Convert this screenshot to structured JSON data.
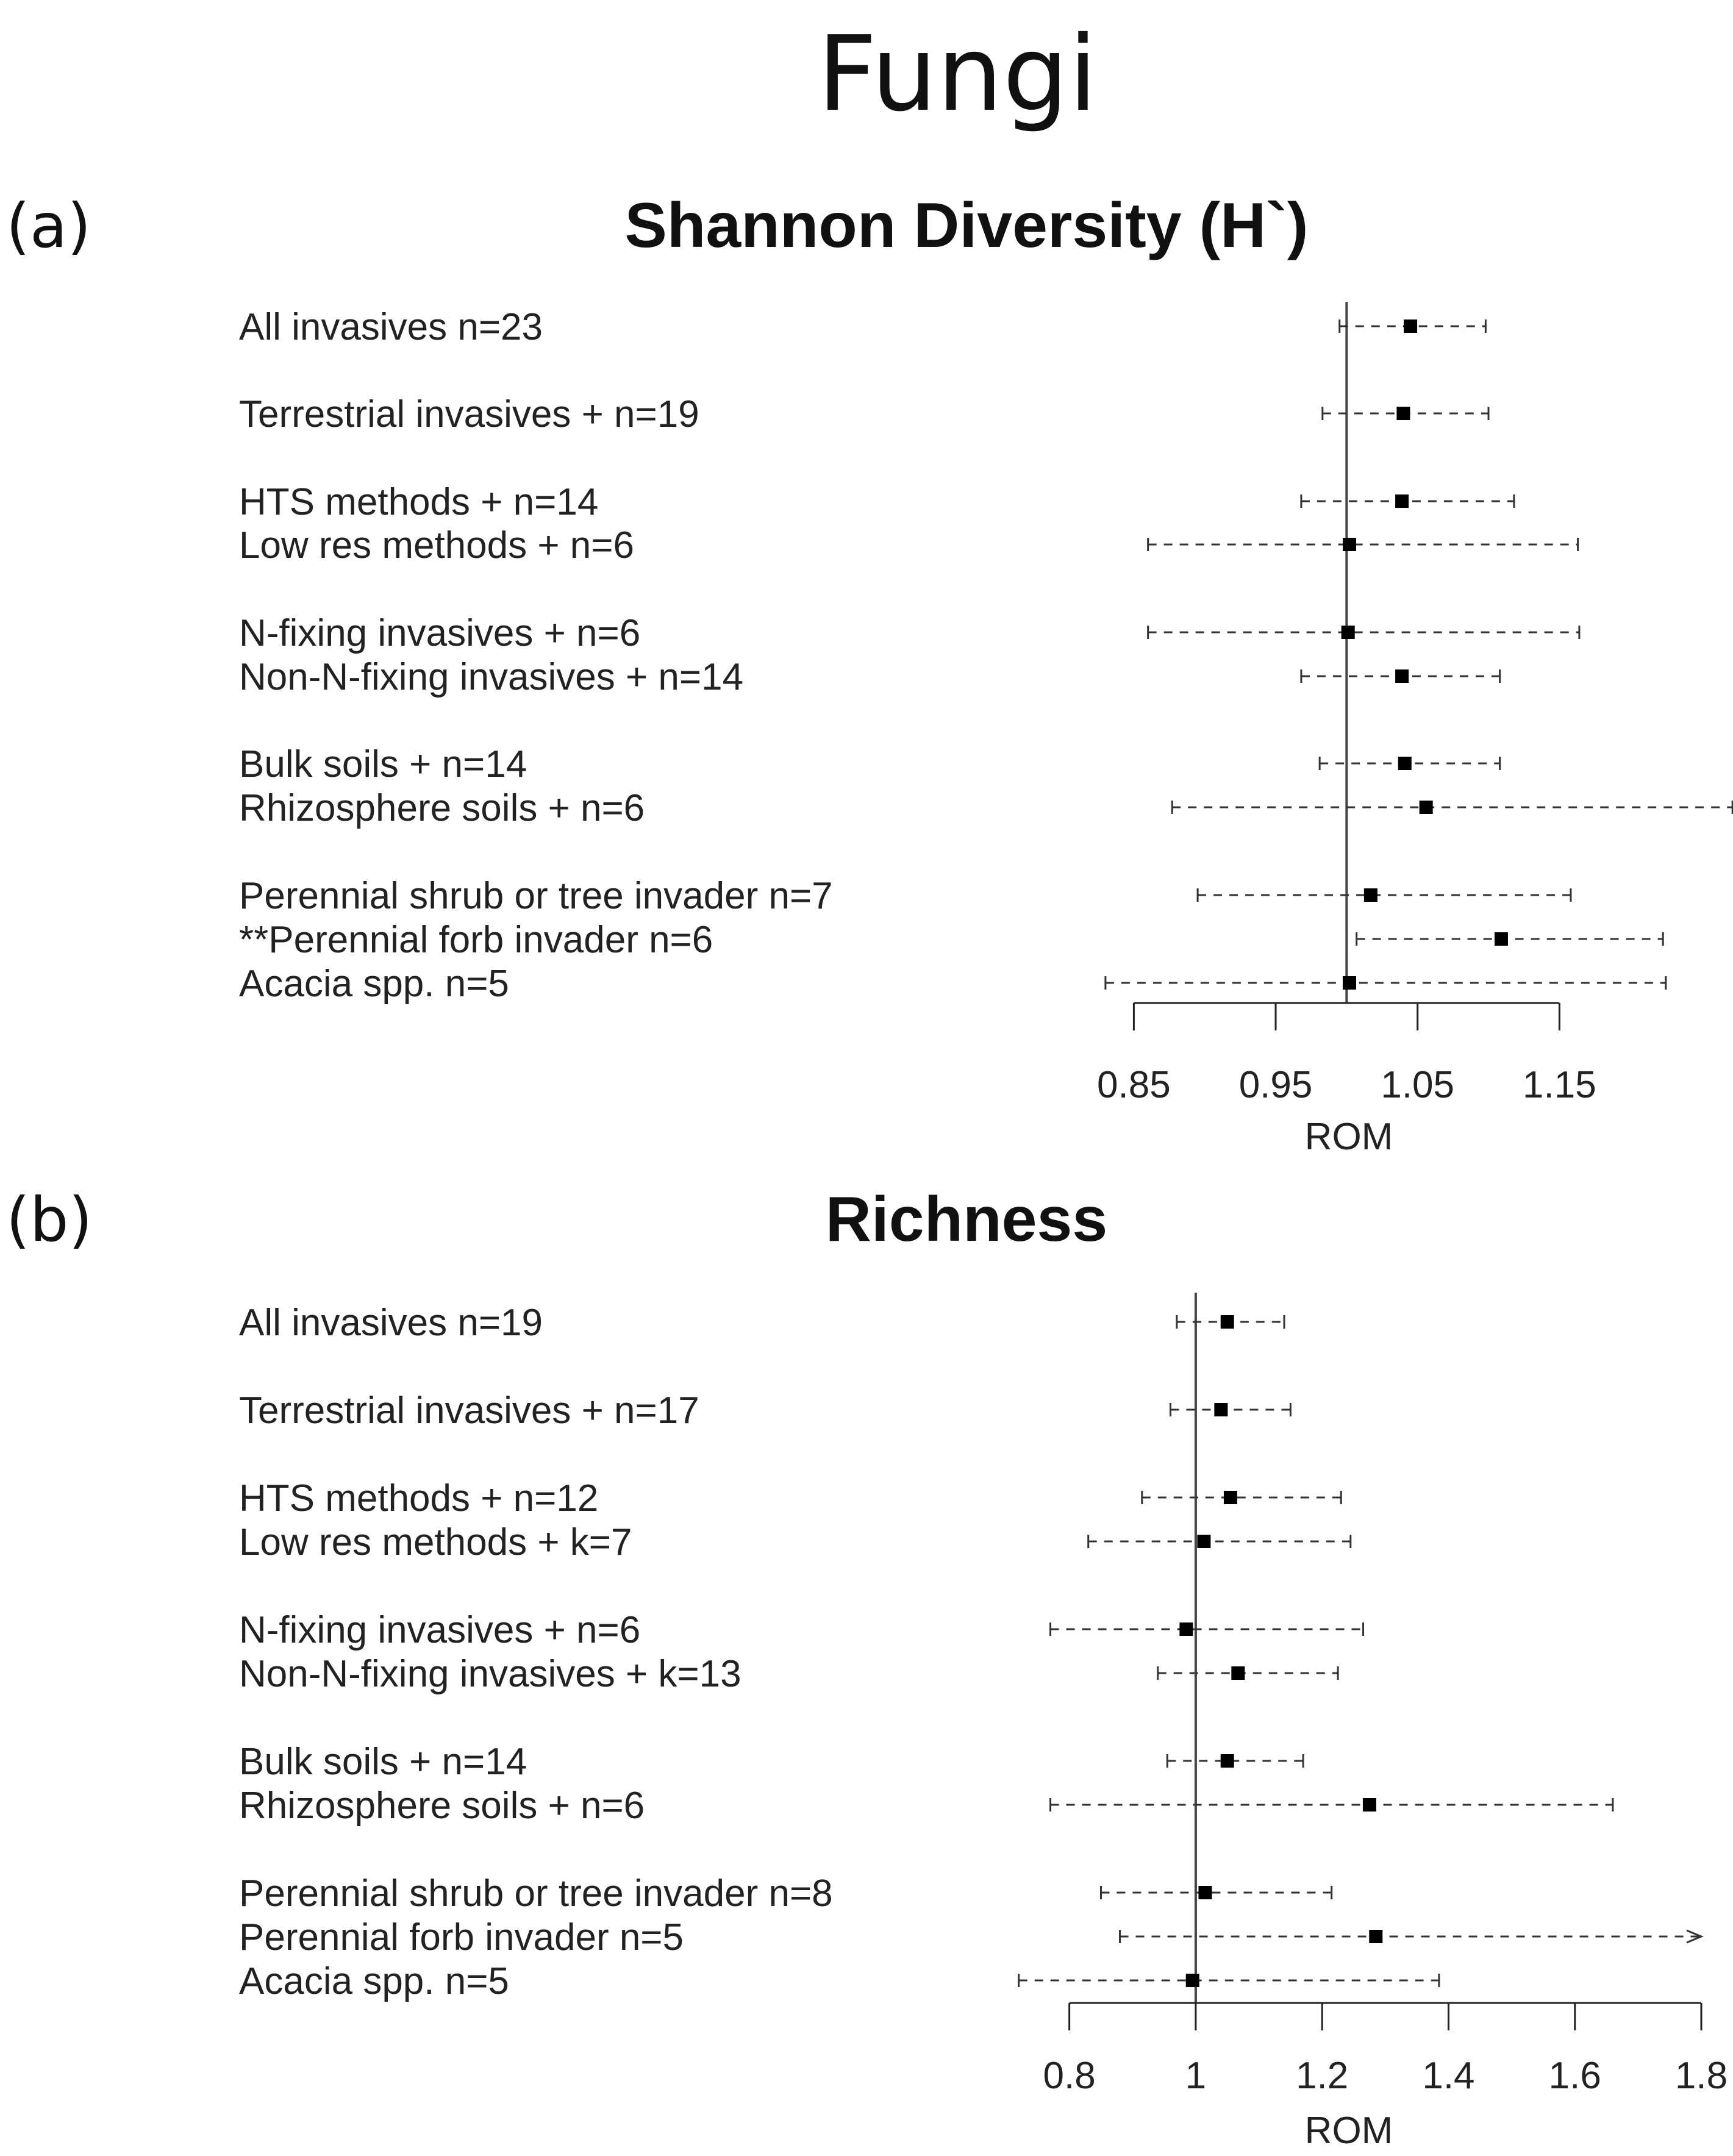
{
  "figure_title": "Fungi",
  "chart_data": [
    {
      "type": "forest",
      "panel": "(a)",
      "title": "Shannon Diversity (H`)",
      "xlabel": "ROM",
      "xlim": [
        0.76,
        1.25
      ],
      "reference_line": 1.0,
      "ticks": [
        0.85,
        0.95,
        1.05,
        1.15
      ],
      "tick_labels": [
        "0.85",
        "0.95",
        "1.05",
        "1.15"
      ],
      "axis_range": [
        0.85,
        1.15
      ],
      "rows": [
        {
          "label": "All invasives n=23",
          "estimate": 1.045,
          "lower": 0.995,
          "upper": 1.098
        },
        {
          "label": "Terrestrial invasives + n=19",
          "estimate": 1.04,
          "lower": 0.983,
          "upper": 1.1
        },
        {
          "label": "HTS methods + n=14",
          "estimate": 1.039,
          "lower": 0.968,
          "upper": 1.118
        },
        {
          "label": "Low res methods + n=6",
          "estimate": 1.002,
          "lower": 0.86,
          "upper": 1.163
        },
        {
          "label": "N-fixing invasives + n=6",
          "estimate": 1.001,
          "lower": 0.86,
          "upper": 1.164
        },
        {
          "label": "Non-N-fixing invasives +  n=14",
          "estimate": 1.039,
          "lower": 0.968,
          "upper": 1.108
        },
        {
          "label": "Bulk soils + n=14",
          "estimate": 1.041,
          "lower": 0.981,
          "upper": 1.108
        },
        {
          "label": "Rhizosphere soils +  n=6",
          "estimate": 1.056,
          "lower": 0.877,
          "upper": 1.272
        },
        {
          "label": "Perennial shrub or tree invader n=7",
          "estimate": 1.017,
          "lower": 0.895,
          "upper": 1.158
        },
        {
          "label": "**Perennial forb invader n=6",
          "estimate": 1.109,
          "lower": 1.007,
          "upper": 1.223
        },
        {
          "label": "Acacia spp. n=5",
          "estimate": 1.002,
          "lower": 0.83,
          "upper": 1.225
        }
      ]
    },
    {
      "type": "forest",
      "panel": "(b)",
      "title": "Richness",
      "xlabel": "ROM",
      "xlim": [
        0.7,
        1.8
      ],
      "reference_line": 1.0,
      "ticks": [
        0.8,
        1.0,
        1.2,
        1.4,
        1.6,
        1.8
      ],
      "tick_labels": [
        "0.8",
        "1",
        "1.2",
        "1.4",
        "1.6",
        "1.8"
      ],
      "axis_range": [
        0.8,
        1.8
      ],
      "rows": [
        {
          "label": "All invasives n=19",
          "estimate": 1.05,
          "lower": 0.97,
          "upper": 1.14
        },
        {
          "label": "Terrestrial invasives + n=17",
          "estimate": 1.04,
          "lower": 0.96,
          "upper": 1.15
        },
        {
          "label": "HTS methods + n=12",
          "estimate": 1.055,
          "lower": 0.915,
          "upper": 1.23
        },
        {
          "label": "Low res methods + k=7",
          "estimate": 1.013,
          "lower": 0.83,
          "upper": 1.245
        },
        {
          "label": "N-fixing invasives + n=6",
          "estimate": 0.985,
          "lower": 0.77,
          "upper": 1.265
        },
        {
          "label": "Non-N-fixing invasives +  k=13",
          "estimate": 1.067,
          "lower": 0.94,
          "upper": 1.225
        },
        {
          "label": "Bulk soils + n=14",
          "estimate": 1.05,
          "lower": 0.955,
          "upper": 1.17
        },
        {
          "label": "Rhizosphere soils +  n=6",
          "estimate": 1.275,
          "lower": 0.77,
          "upper": 1.66
        },
        {
          "label": "Perennial shrub or tree invader n=8",
          "estimate": 1.015,
          "lower": 0.85,
          "upper": 1.215
        },
        {
          "label": "Perennial forb invader n=5",
          "estimate": 1.285,
          "lower": 0.88,
          "upper": 1.8,
          "upper_truncated": true
        },
        {
          "label": "Acacia spp. n=5",
          "estimate": 0.995,
          "lower": 0.72,
          "upper": 1.385
        }
      ]
    }
  ]
}
